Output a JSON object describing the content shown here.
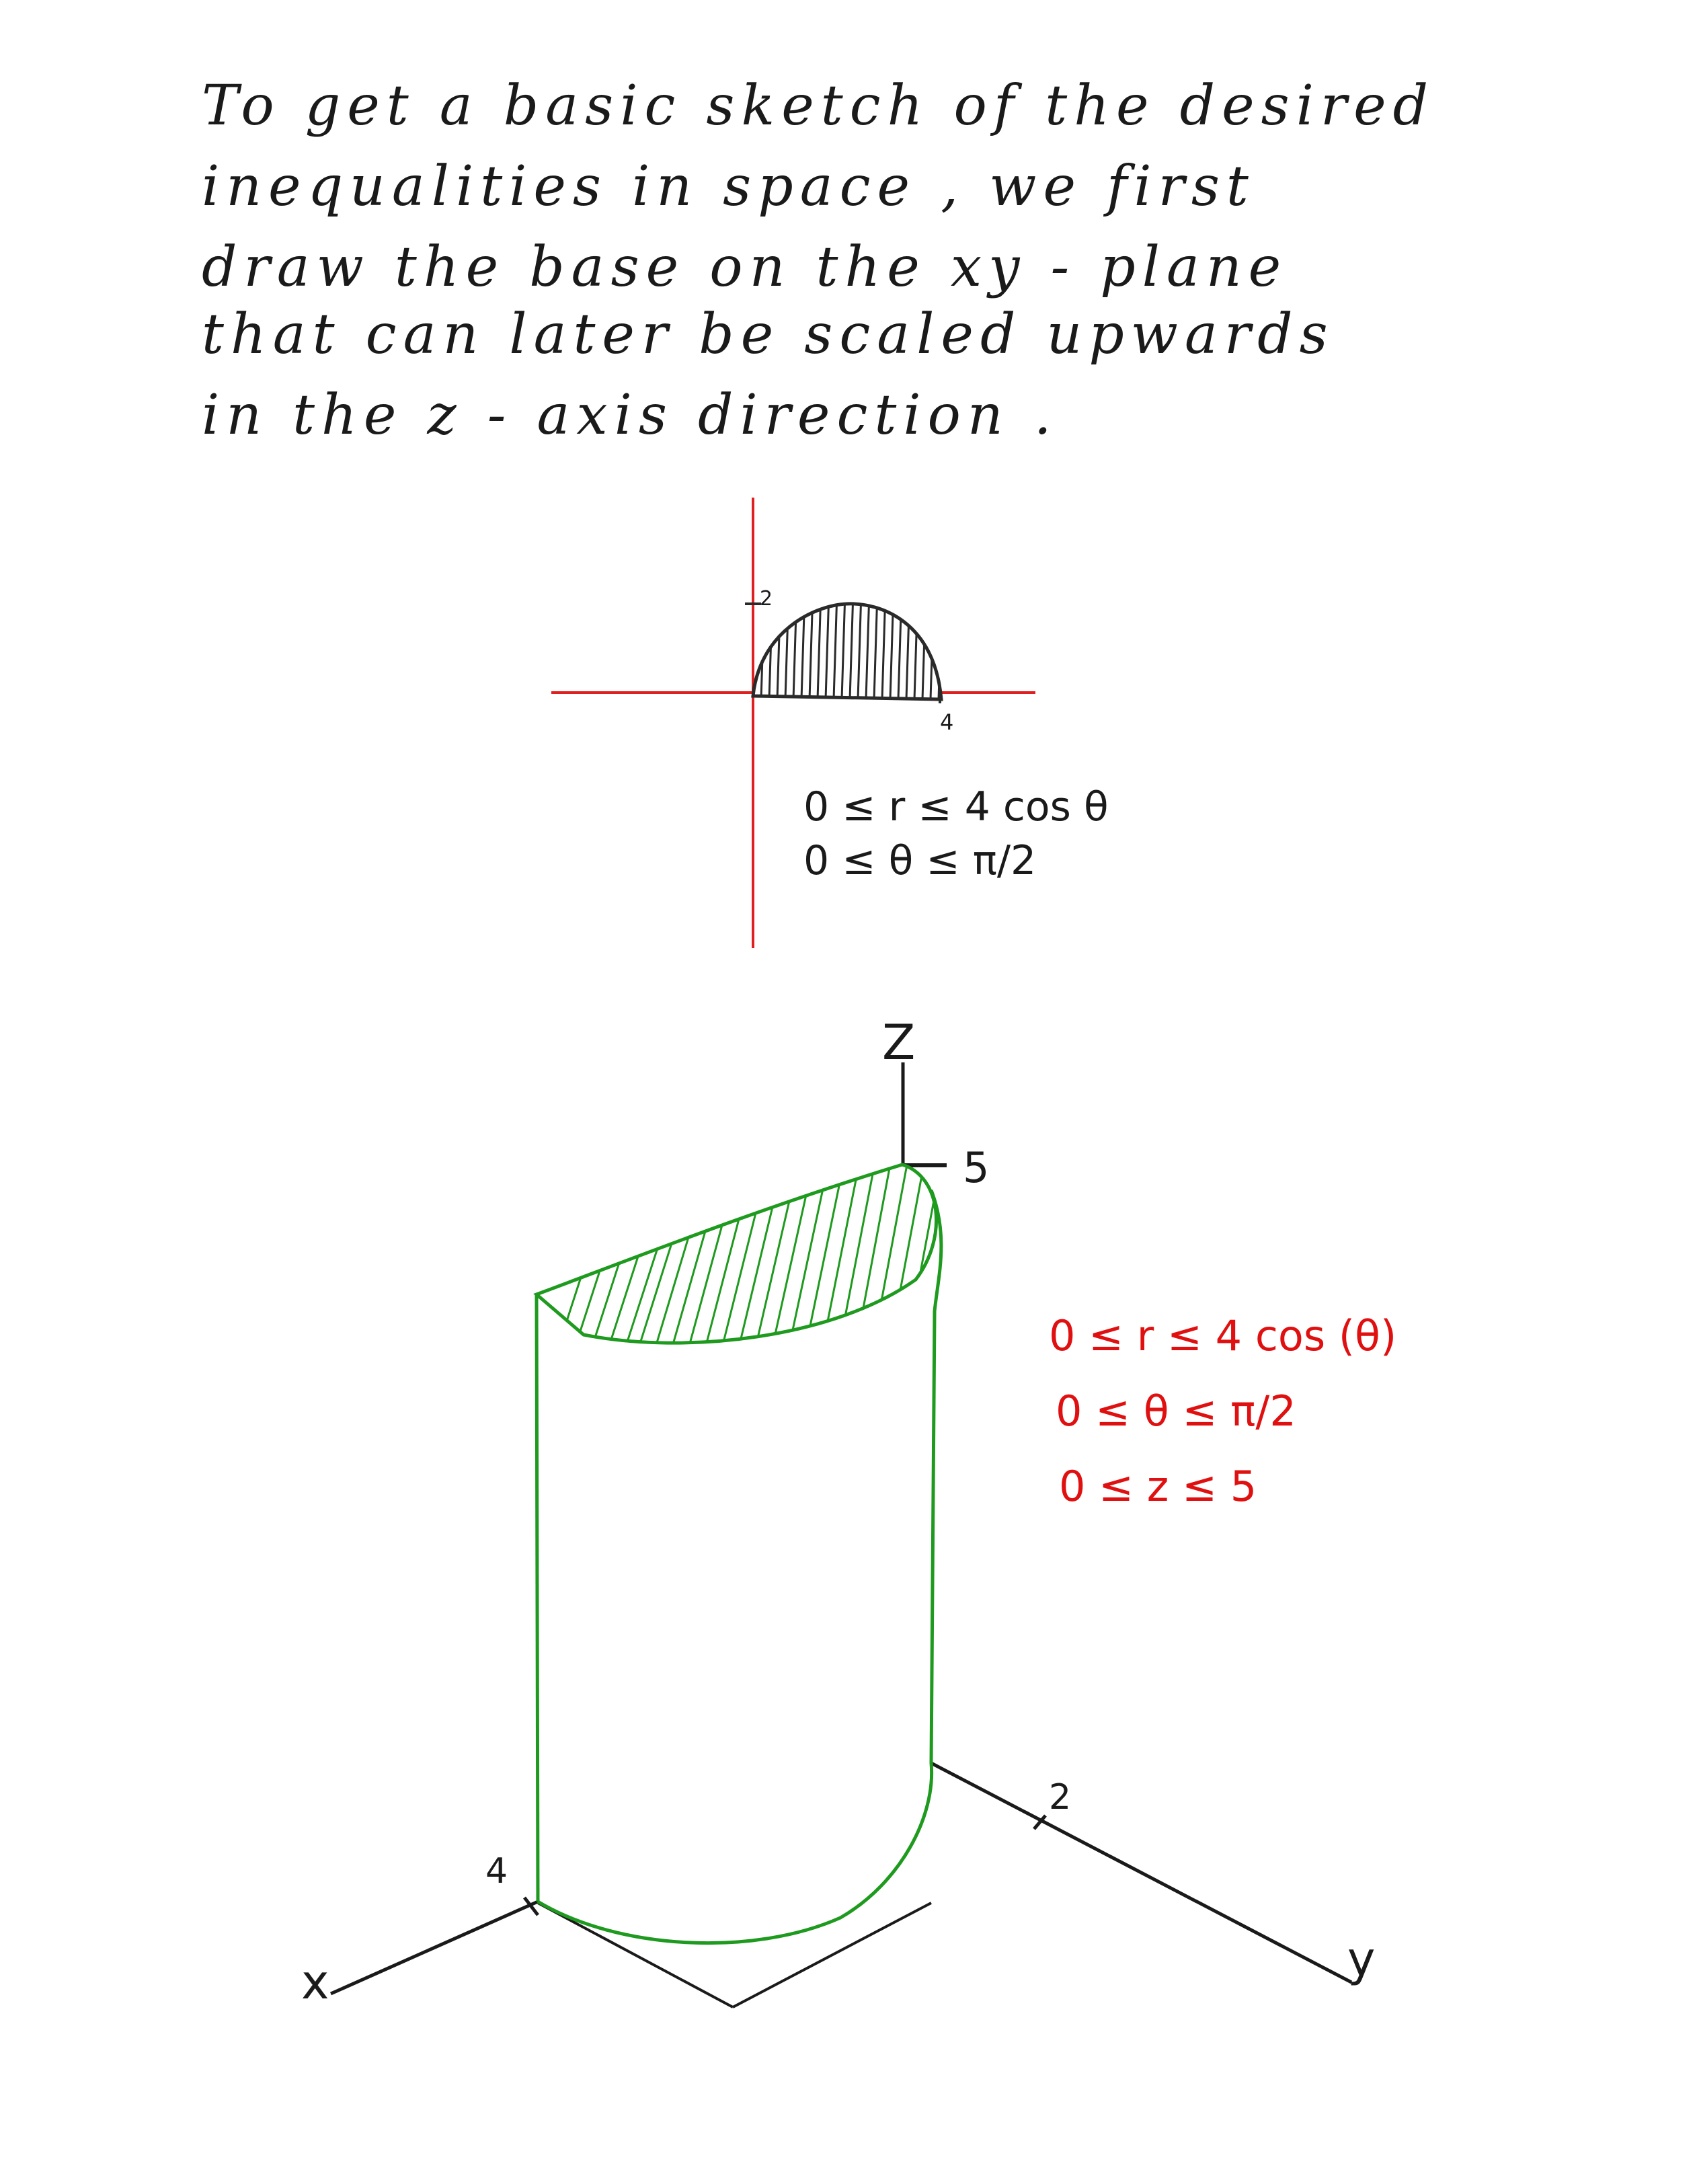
{
  "intro": {
    "lines": [
      "To  get   a  basic  sketch  of  the  desired",
      "inequalities   in   space ,   we  first",
      "draw   the  base   on   the   xy - plane",
      "that  can  later   be  scaled  upwards",
      "in     the     z - axis   direction ."
    ]
  },
  "sketch2d": {
    "tick_y": "2",
    "tick_x": "4",
    "ineq1": "0 ≤ r ≤ 4 cos θ",
    "ineq2": "0 ≤ θ ≤ π/2",
    "axis_color": "#e02020",
    "fill_color": "#2a2a2a"
  },
  "sketch3d": {
    "z_label": "Z",
    "z_tick": "5",
    "x_label": "x",
    "x_tick": "4",
    "y_label": "y",
    "y_tick": "2",
    "solid_color": "#1e9a1e",
    "ineq1": "0 ≤ r ≤ 4 cos (θ)",
    "ineq2": "0 ≤ θ ≤ π/2",
    "ineq3": "0 ≤ z ≤ 5",
    "ineq_color": "#e01010"
  }
}
